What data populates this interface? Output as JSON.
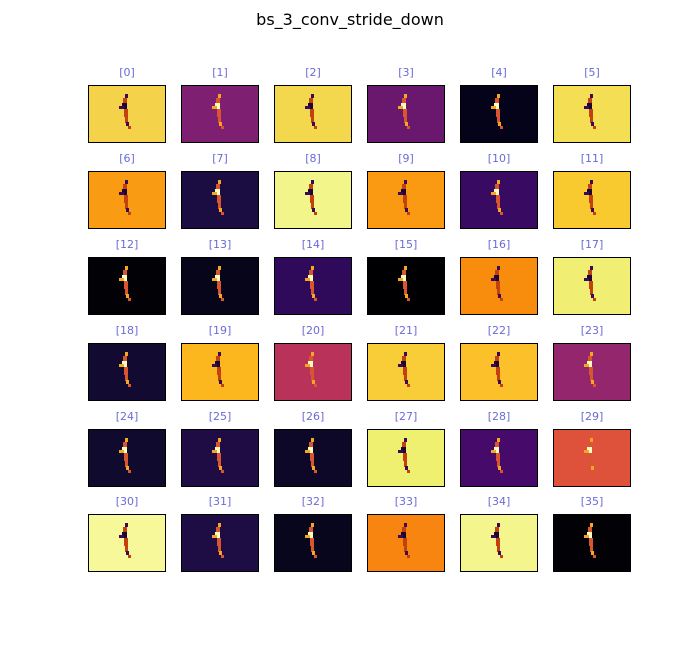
{
  "figure": {
    "title": "bs_3_conv_stride_down",
    "label_color": "#6b6bd6"
  },
  "panels": [
    {
      "label": "[0]",
      "bg": "#f4d34a",
      "tone": "dark"
    },
    {
      "label": "[1]",
      "bg": "#7f1f71",
      "tone": "bright"
    },
    {
      "label": "[2]",
      "bg": "#f3d74c",
      "tone": "dark"
    },
    {
      "label": "[3]",
      "bg": "#6a176e",
      "tone": "bright"
    },
    {
      "label": "[4]",
      "bg": "#04031a",
      "tone": "bright"
    },
    {
      "label": "[5]",
      "bg": "#f4df54",
      "tone": "dark"
    },
    {
      "label": "[6]",
      "bg": "#f99c13",
      "tone": "dark"
    },
    {
      "label": "[7]",
      "bg": "#1b0c41",
      "tone": "bright"
    },
    {
      "label": "[8]",
      "bg": "#f1f58a",
      "tone": "dark"
    },
    {
      "label": "[9]",
      "bg": "#fa9a12",
      "tone": "dark"
    },
    {
      "label": "[10]",
      "bg": "#390a62",
      "tone": "bright"
    },
    {
      "label": "[11]",
      "bg": "#f9c930",
      "tone": "dark"
    },
    {
      "label": "[12]",
      "bg": "#010106",
      "tone": "bright"
    },
    {
      "label": "[13]",
      "bg": "#06051a",
      "tone": "bright"
    },
    {
      "label": "[14]",
      "bg": "#2f0a5b",
      "tone": "bright"
    },
    {
      "label": "[15]",
      "bg": "#000003",
      "tone": "bright"
    },
    {
      "label": "[16]",
      "bg": "#f88c0c",
      "tone": "dark"
    },
    {
      "label": "[17]",
      "bg": "#f0ee73",
      "tone": "dark"
    },
    {
      "label": "[18]",
      "bg": "#120a31",
      "tone": "bright"
    },
    {
      "label": "[19]",
      "bg": "#fcb61e",
      "tone": "dark"
    },
    {
      "label": "[20]",
      "bg": "#b8325a",
      "tone": "bright"
    },
    {
      "label": "[21]",
      "bg": "#f8cd38",
      "tone": "dark"
    },
    {
      "label": "[22]",
      "bg": "#fbc02a",
      "tone": "dark"
    },
    {
      "label": "[23]",
      "bg": "#93266c",
      "tone": "bright"
    },
    {
      "label": "[24]",
      "bg": "#110a2f",
      "tone": "bright"
    },
    {
      "label": "[25]",
      "bg": "#1f0c45",
      "tone": "bright"
    },
    {
      "label": "[26]",
      "bg": "#0d0827",
      "tone": "bright"
    },
    {
      "label": "[27]",
      "bg": "#eff070",
      "tone": "dark"
    },
    {
      "label": "[28]",
      "bg": "#460b6a",
      "tone": "bright"
    },
    {
      "label": "[29]",
      "bg": "#de513a",
      "tone": "bright"
    },
    {
      "label": "[30]",
      "bg": "#f6f899",
      "tone": "dark"
    },
    {
      "label": "[31]",
      "bg": "#1e0c45",
      "tone": "bright"
    },
    {
      "label": "[32]",
      "bg": "#07061d",
      "tone": "bright"
    },
    {
      "label": "[33]",
      "bg": "#f7850f",
      "tone": "dark"
    },
    {
      "label": "[34]",
      "bg": "#f4f58c",
      "tone": "dark"
    },
    {
      "label": "[35]",
      "bg": "#020105",
      "tone": "bright"
    }
  ]
}
